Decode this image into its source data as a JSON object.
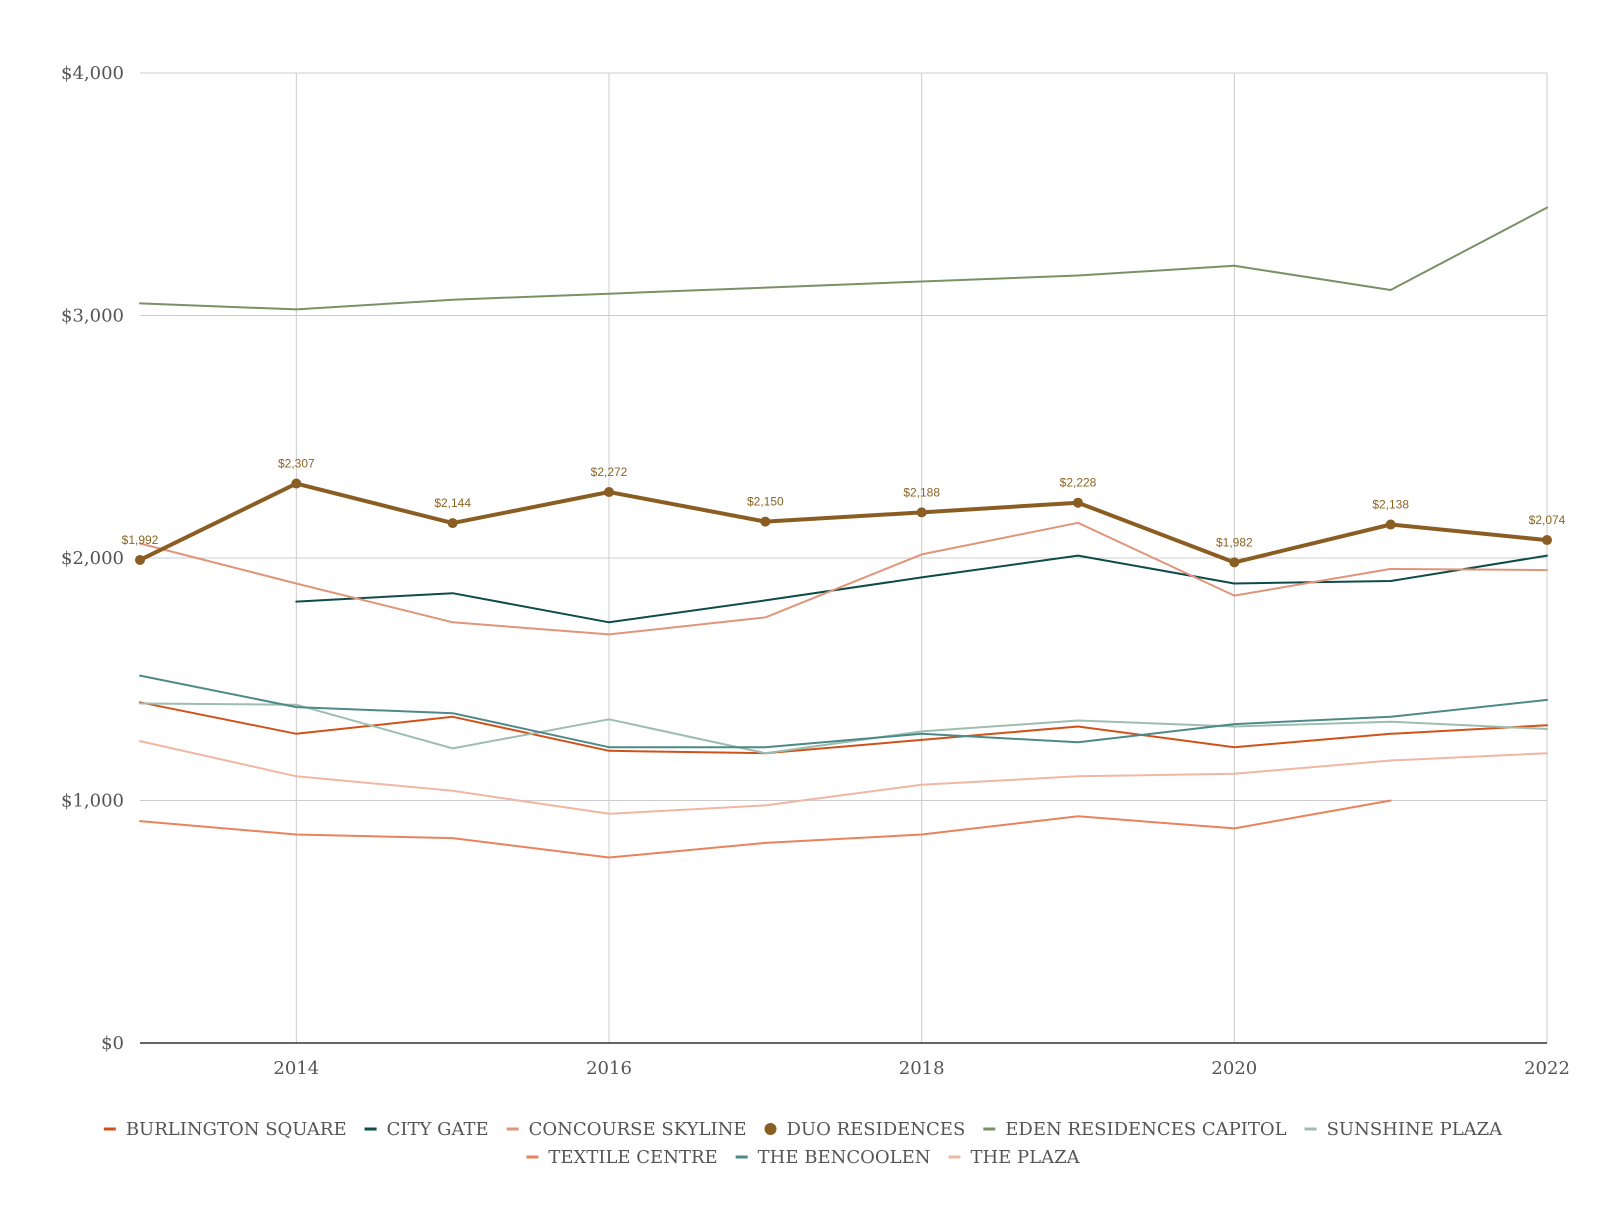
{
  "chart_data": {
    "type": "line",
    "title": "",
    "xlabel": "",
    "ylabel": "",
    "x": [
      2013,
      2014,
      2015,
      2016,
      2017,
      2018,
      2019,
      2020,
      2021,
      2022
    ],
    "x_ticks": [
      "2014",
      "2016",
      "2018",
      "2020",
      "2022"
    ],
    "x_tick_values": [
      2014,
      2016,
      2018,
      2020,
      2022
    ],
    "xlim": [
      2013,
      2022
    ],
    "ylim": [
      0,
      4000
    ],
    "y_ticks": [
      "$0",
      "$1,000",
      "$2,000",
      "$3,000",
      "$4,000"
    ],
    "y_tick_values": [
      0,
      1000,
      2000,
      3000,
      4000
    ],
    "grid": true,
    "legend_position": "bottom",
    "series": [
      {
        "name": "BURLINGTON SQUARE",
        "color": "#d0521b",
        "width": 2,
        "marker": "line",
        "values": [
          1405,
          1275,
          1345,
          1205,
          1195,
          1250,
          1305,
          1220,
          1275,
          1310
        ]
      },
      {
        "name": "CITY GATE",
        "color": "#0d4c48",
        "width": 2,
        "marker": "line",
        "values": [
          null,
          1820,
          1855,
          1735,
          1825,
          1920,
          2010,
          1895,
          1905,
          2010
        ]
      },
      {
        "name": "CONCOURSE SKYLINE",
        "color": "#e0957a",
        "width": 2,
        "marker": "line",
        "values": [
          2060,
          1895,
          1735,
          1685,
          1755,
          2015,
          2145,
          1845,
          1955,
          1950
        ]
      },
      {
        "name": "DUO RESIDENCES",
        "color": "#8a5d22",
        "width": 4,
        "marker": "dot",
        "values": [
          1992,
          2307,
          2144,
          2272,
          2150,
          2188,
          2228,
          1982,
          2138,
          2074
        ],
        "data_labels": [
          "$1,992",
          "$2,307",
          "$2,144",
          "$2,272",
          "$2,150",
          "$2,188",
          "$2,228",
          "$1,982",
          "$2,138",
          "$2,074"
        ]
      },
      {
        "name": "EDEN RESIDENCES CAPITOL",
        "color": "#7a9165",
        "width": 2,
        "marker": "line",
        "values": [
          3050,
          3025,
          3065,
          3090,
          3115,
          3140,
          3165,
          3205,
          3105,
          3445
        ]
      },
      {
        "name": "SUNSHINE PLAZA",
        "color": "#9dbdb0",
        "width": 2,
        "marker": "line",
        "values": [
          1400,
          1395,
          1215,
          1335,
          1195,
          1285,
          1330,
          1305,
          1325,
          1295
        ]
      },
      {
        "name": "TEXTILE CENTRE",
        "color": "#e8835c",
        "width": 2,
        "marker": "line",
        "values": [
          915,
          860,
          845,
          765,
          825,
          860,
          935,
          885,
          1000,
          null
        ]
      },
      {
        "name": "THE BENCOOLEN",
        "color": "#4d8a87",
        "width": 2,
        "marker": "line",
        "values": [
          1515,
          1385,
          1360,
          1220,
          1220,
          1275,
          1240,
          1315,
          1345,
          1415
        ]
      },
      {
        "name": "THE PLAZA",
        "color": "#f0b7a2",
        "width": 2,
        "marker": "line",
        "values": [
          1245,
          1100,
          1040,
          945,
          980,
          1065,
          1100,
          1110,
          1165,
          1195
        ]
      }
    ]
  }
}
